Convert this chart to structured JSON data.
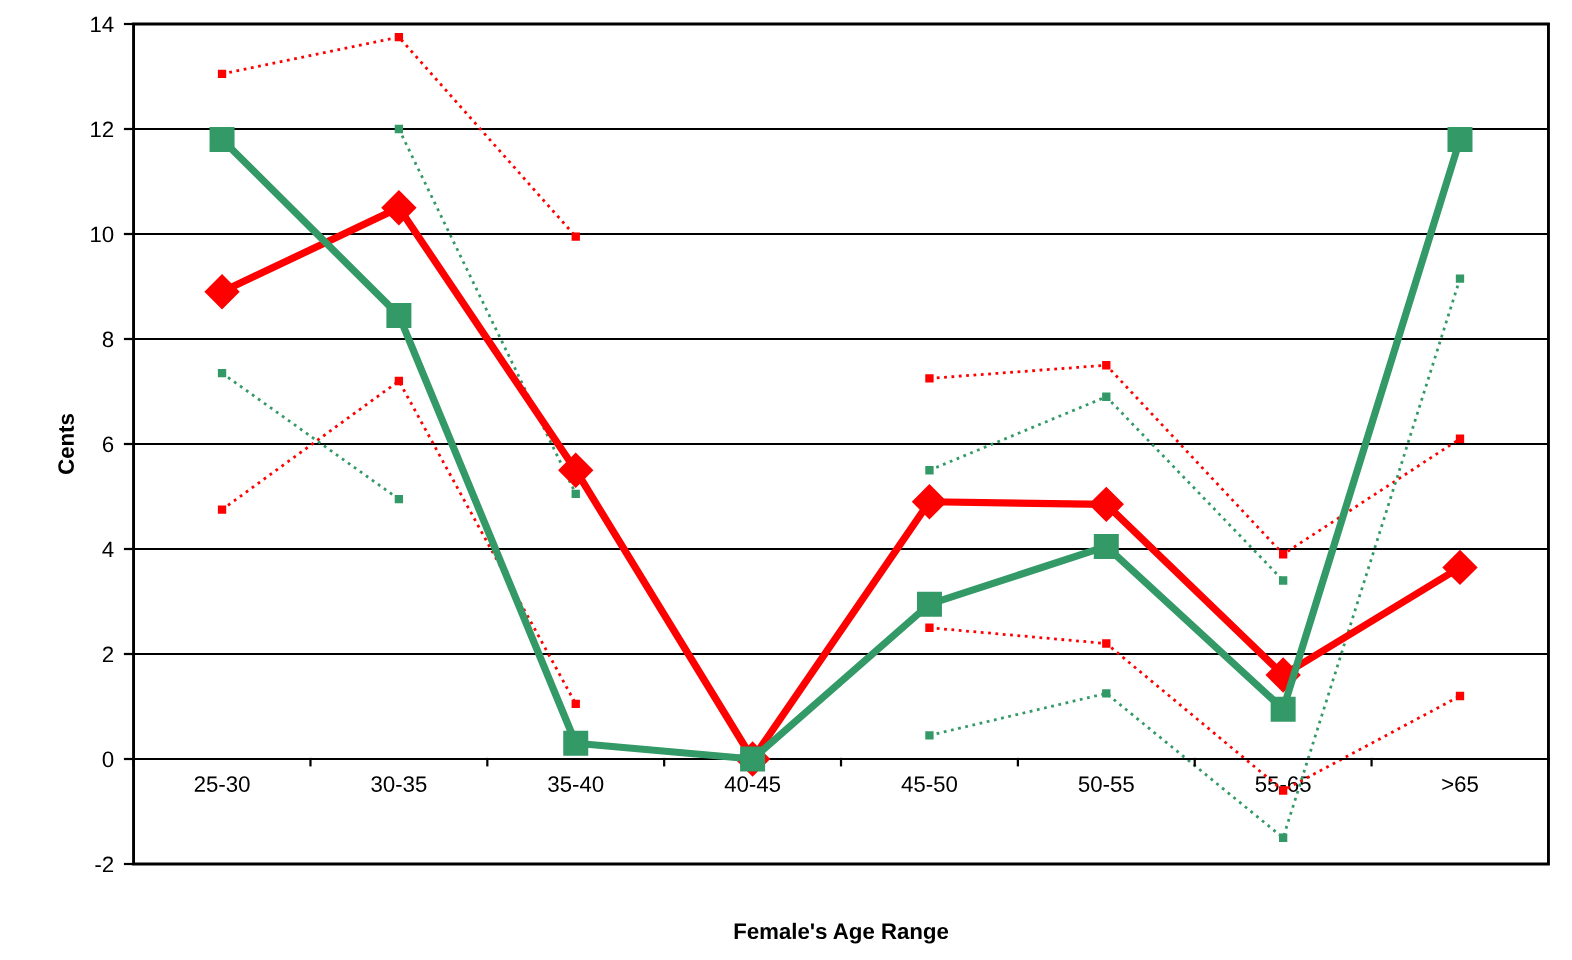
{
  "chart_data": {
    "type": "line",
    "xlabel": "Female's Age Range",
    "ylabel": "Cents",
    "categories": [
      "25-30",
      "30-35",
      "35-40",
      "40-45",
      "45-50",
      "50-55",
      "55-65",
      ">65"
    ],
    "series": [
      {
        "color": "#ff0000",
        "line_style": "dotted",
        "marker": "square",
        "values": [
          13.05,
          13.75,
          9.95,
          null,
          7.25,
          7.5,
          3.9,
          6.1
        ]
      },
      {
        "color": "#ff0000",
        "line_style": "dotted",
        "marker": "square",
        "values": [
          4.75,
          7.2,
          1.05,
          null,
          2.5,
          2.2,
          -0.6,
          1.2
        ]
      },
      {
        "color": "#339966",
        "line_style": "dotted",
        "marker": "square",
        "values": [
          null,
          12.0,
          5.05,
          null,
          5.5,
          6.9,
          3.4,
          null
        ]
      },
      {
        "color": "#339966",
        "line_style": "dotted",
        "marker": "square",
        "values": [
          7.35,
          4.95,
          null,
          null,
          0.45,
          1.25,
          -1.5,
          9.15
        ]
      },
      {
        "color": "#ff0000",
        "line_style": "solid",
        "marker": "diamond",
        "values": [
          8.9,
          10.5,
          5.5,
          0,
          4.9,
          4.85,
          1.6,
          3.65
        ]
      },
      {
        "color": "#339966",
        "line_style": "solid",
        "marker": "square",
        "values": [
          11.8,
          8.45,
          0.3,
          0,
          2.95,
          4.05,
          0.95,
          11.8
        ]
      }
    ],
    "ylim": [
      -2,
      14
    ],
    "yticks": [
      -2,
      0,
      2,
      4,
      6,
      8,
      10,
      12,
      14
    ],
    "grid": "y"
  }
}
